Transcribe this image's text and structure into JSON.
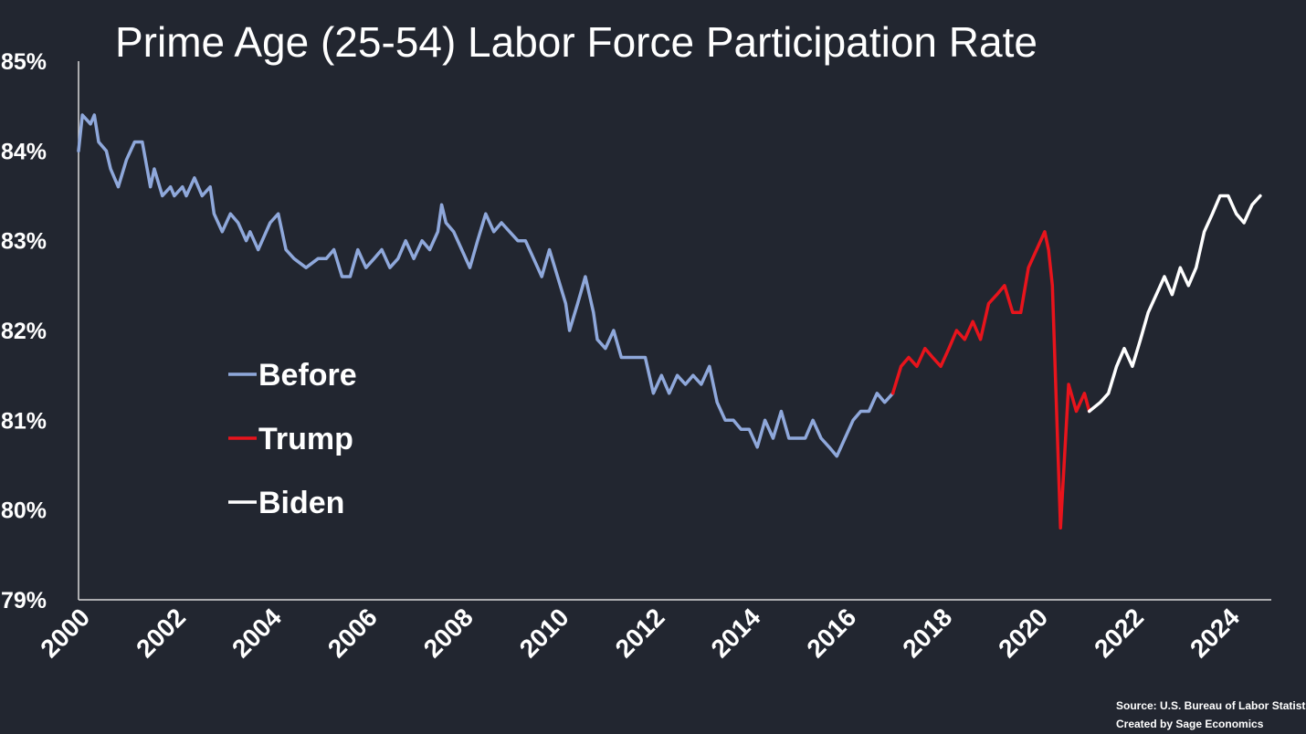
{
  "chart_data": {
    "type": "line",
    "title": "Prime Age (25-54) Labor Force Participation Rate",
    "xlabel": "",
    "ylabel": "",
    "ylim": [
      79,
      85
    ],
    "xlim": [
      2000,
      2024.9
    ],
    "yticks": [
      "79%",
      "80%",
      "81%",
      "82%",
      "83%",
      "84%",
      "85%"
    ],
    "xticks": [
      "2000",
      "2002",
      "2004",
      "2006",
      "2008",
      "2010",
      "2012",
      "2014",
      "2016",
      "2018",
      "2020",
      "2022",
      "2024"
    ],
    "grid": false,
    "legend_position": "center-left",
    "series": [
      {
        "name": "Before",
        "color": "#8fa8db",
        "points": [
          [
            2000.0,
            84.0
          ],
          [
            2000.08,
            84.4
          ],
          [
            2000.25,
            84.3
          ],
          [
            2000.33,
            84.4
          ],
          [
            2000.42,
            84.1
          ],
          [
            2000.58,
            84.0
          ],
          [
            2000.67,
            83.8
          ],
          [
            2000.83,
            83.6
          ],
          [
            2001.0,
            83.9
          ],
          [
            2001.17,
            84.1
          ],
          [
            2001.33,
            84.1
          ],
          [
            2001.5,
            83.6
          ],
          [
            2001.58,
            83.8
          ],
          [
            2001.75,
            83.5
          ],
          [
            2001.92,
            83.6
          ],
          [
            2002.0,
            83.5
          ],
          [
            2002.17,
            83.6
          ],
          [
            2002.25,
            83.5
          ],
          [
            2002.42,
            83.7
          ],
          [
            2002.58,
            83.5
          ],
          [
            2002.75,
            83.6
          ],
          [
            2002.83,
            83.3
          ],
          [
            2003.0,
            83.1
          ],
          [
            2003.17,
            83.3
          ],
          [
            2003.33,
            83.2
          ],
          [
            2003.5,
            83.0
          ],
          [
            2003.58,
            83.1
          ],
          [
            2003.75,
            82.9
          ],
          [
            2004.0,
            83.2
          ],
          [
            2004.17,
            83.3
          ],
          [
            2004.33,
            82.9
          ],
          [
            2004.5,
            82.8
          ],
          [
            2004.75,
            82.7
          ],
          [
            2005.0,
            82.8
          ],
          [
            2005.17,
            82.8
          ],
          [
            2005.33,
            82.9
          ],
          [
            2005.5,
            82.6
          ],
          [
            2005.67,
            82.6
          ],
          [
            2005.83,
            82.9
          ],
          [
            2006.0,
            82.7
          ],
          [
            2006.17,
            82.8
          ],
          [
            2006.33,
            82.9
          ],
          [
            2006.5,
            82.7
          ],
          [
            2006.67,
            82.8
          ],
          [
            2006.83,
            83.0
          ],
          [
            2007.0,
            82.8
          ],
          [
            2007.17,
            83.0
          ],
          [
            2007.33,
            82.9
          ],
          [
            2007.5,
            83.1
          ],
          [
            2007.58,
            83.4
          ],
          [
            2007.67,
            83.2
          ],
          [
            2007.83,
            83.1
          ],
          [
            2008.0,
            82.9
          ],
          [
            2008.17,
            82.7
          ],
          [
            2008.33,
            83.0
          ],
          [
            2008.5,
            83.3
          ],
          [
            2008.67,
            83.1
          ],
          [
            2008.83,
            83.2
          ],
          [
            2009.0,
            83.1
          ],
          [
            2009.17,
            83.0
          ],
          [
            2009.33,
            83.0
          ],
          [
            2009.5,
            82.8
          ],
          [
            2009.67,
            82.6
          ],
          [
            2009.83,
            82.9
          ],
          [
            2010.0,
            82.6
          ],
          [
            2010.17,
            82.3
          ],
          [
            2010.25,
            82.0
          ],
          [
            2010.42,
            82.3
          ],
          [
            2010.58,
            82.6
          ],
          [
            2010.75,
            82.2
          ],
          [
            2010.83,
            81.9
          ],
          [
            2011.0,
            81.8
          ],
          [
            2011.17,
            82.0
          ],
          [
            2011.33,
            81.7
          ],
          [
            2011.5,
            81.7
          ],
          [
            2011.67,
            81.7
          ],
          [
            2011.83,
            81.7
          ],
          [
            2012.0,
            81.3
          ],
          [
            2012.17,
            81.5
          ],
          [
            2012.33,
            81.3
          ],
          [
            2012.5,
            81.5
          ],
          [
            2012.67,
            81.4
          ],
          [
            2012.83,
            81.5
          ],
          [
            2013.0,
            81.4
          ],
          [
            2013.17,
            81.6
          ],
          [
            2013.33,
            81.2
          ],
          [
            2013.5,
            81.0
          ],
          [
            2013.67,
            81.0
          ],
          [
            2013.83,
            80.9
          ],
          [
            2014.0,
            80.9
          ],
          [
            2014.17,
            80.7
          ],
          [
            2014.33,
            81.0
          ],
          [
            2014.5,
            80.8
          ],
          [
            2014.67,
            81.1
          ],
          [
            2014.83,
            80.8
          ],
          [
            2015.0,
            80.8
          ],
          [
            2015.17,
            80.8
          ],
          [
            2015.33,
            81.0
          ],
          [
            2015.5,
            80.8
          ],
          [
            2015.67,
            80.7
          ],
          [
            2015.83,
            80.6
          ],
          [
            2016.0,
            80.8
          ],
          [
            2016.17,
            81.0
          ],
          [
            2016.33,
            81.1
          ],
          [
            2016.5,
            81.1
          ],
          [
            2016.67,
            81.3
          ],
          [
            2016.83,
            81.2
          ],
          [
            2017.0,
            81.3
          ]
        ]
      },
      {
        "name": "Trump",
        "color": "#e8141c",
        "points": [
          [
            2017.0,
            81.3
          ],
          [
            2017.17,
            81.6
          ],
          [
            2017.33,
            81.7
          ],
          [
            2017.5,
            81.6
          ],
          [
            2017.67,
            81.8
          ],
          [
            2017.83,
            81.7
          ],
          [
            2018.0,
            81.6
          ],
          [
            2018.17,
            81.8
          ],
          [
            2018.33,
            82.0
          ],
          [
            2018.5,
            81.9
          ],
          [
            2018.67,
            82.1
          ],
          [
            2018.83,
            81.9
          ],
          [
            2019.0,
            82.3
          ],
          [
            2019.17,
            82.4
          ],
          [
            2019.33,
            82.5
          ],
          [
            2019.5,
            82.2
          ],
          [
            2019.67,
            82.2
          ],
          [
            2019.83,
            82.7
          ],
          [
            2020.0,
            82.9
          ],
          [
            2020.17,
            83.1
          ],
          [
            2020.25,
            82.9
          ],
          [
            2020.33,
            82.5
          ],
          [
            2020.5,
            79.8
          ],
          [
            2020.67,
            81.4
          ],
          [
            2020.83,
            81.1
          ],
          [
            2021.0,
            81.3
          ],
          [
            2021.1,
            81.1
          ]
        ]
      },
      {
        "name": "Biden",
        "color": "#ffffff",
        "points": [
          [
            2021.1,
            81.1
          ],
          [
            2021.33,
            81.2
          ],
          [
            2021.5,
            81.3
          ],
          [
            2021.67,
            81.6
          ],
          [
            2021.83,
            81.8
          ],
          [
            2022.0,
            81.6
          ],
          [
            2022.17,
            81.9
          ],
          [
            2022.33,
            82.2
          ],
          [
            2022.5,
            82.4
          ],
          [
            2022.67,
            82.6
          ],
          [
            2022.83,
            82.4
          ],
          [
            2023.0,
            82.7
          ],
          [
            2023.17,
            82.5
          ],
          [
            2023.33,
            82.7
          ],
          [
            2023.5,
            83.1
          ],
          [
            2023.67,
            83.3
          ],
          [
            2023.83,
            83.5
          ],
          [
            2024.0,
            83.5
          ],
          [
            2024.17,
            83.3
          ],
          [
            2024.33,
            83.2
          ],
          [
            2024.5,
            83.4
          ],
          [
            2024.67,
            83.5
          ]
        ]
      }
    ],
    "source_lines": [
      "Source: U.S. Bureau of Labor Statistics",
      "Created by Sage Economics"
    ]
  }
}
